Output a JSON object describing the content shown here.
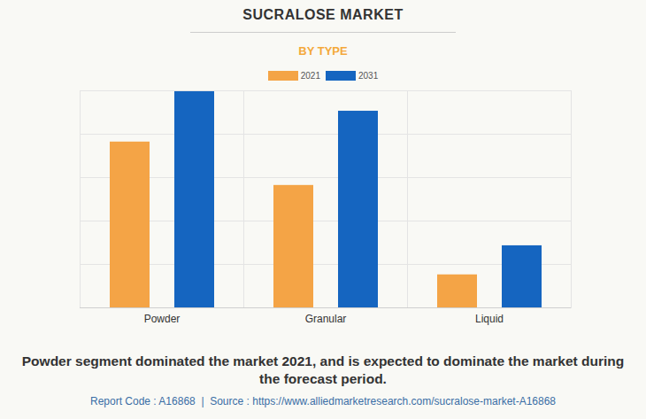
{
  "chart_data": {
    "type": "bar",
    "title": "SUCRALOSE MARKET",
    "subtitle": "BY TYPE",
    "caption": "Powder segment dominated the market 2021, and is expected to dominate the market during the forecast period.",
    "footer": "Report Code : A16868  |  Source : https://www.alliedmarketresearch.com/sucralose-market-A16868",
    "categories": [
      "Powder",
      "Granular",
      "Liquid"
    ],
    "series": [
      {
        "name": "2021",
        "color": "#f4a446",
        "values": [
          3.82,
          2.82,
          0.76
        ]
      },
      {
        "name": "2031",
        "color": "#1565c0",
        "values": [
          4.98,
          4.53,
          1.43
        ]
      }
    ],
    "ylim": [
      0,
      5
    ],
    "yticks": [
      0,
      1,
      2,
      3,
      4,
      5
    ],
    "grid": true,
    "tick_labels": "x"
  }
}
